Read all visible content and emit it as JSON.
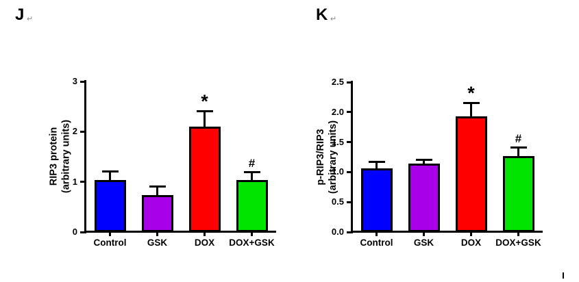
{
  "page": {
    "background": "#ffffff"
  },
  "panels": [
    {
      "label": "J",
      "mark": "↵"
    },
    {
      "label": "K",
      "mark": "↵"
    }
  ],
  "chart_data": [
    {
      "type": "bar",
      "title": "",
      "xlabel": "",
      "ylabel_line1": "RIP3 protein",
      "ylabel_line2": "(arbitrary units)",
      "categories": [
        "Control",
        "GSK",
        "DOX",
        "DOX+GSK"
      ],
      "values": [
        1.03,
        0.73,
        2.1,
        1.03
      ],
      "errors": [
        0.19,
        0.18,
        0.32,
        0.17
      ],
      "bar_colors": [
        "#0000FF",
        "#A800E8",
        "#FF0000",
        "#00E400"
      ],
      "annotations": [
        "",
        "",
        "*",
        "#"
      ],
      "ylim": [
        0,
        3
      ],
      "yticks": [
        0,
        1,
        2,
        3
      ],
      "ytick_labels": [
        "0",
        "1",
        "2",
        "3"
      ],
      "grid": false,
      "legend": "none",
      "error_bar_style": "caps-upward-only",
      "bar_outline_color": "#000000"
    },
    {
      "type": "bar",
      "title": "",
      "xlabel": "",
      "ylabel_line1": "p-RIP3/RIP3",
      "ylabel_line2": "(arbitrary units)",
      "categories": [
        "Control",
        "GSK",
        "DOX",
        "DOX+GSK"
      ],
      "values": [
        1.06,
        1.14,
        1.93,
        1.27
      ],
      "errors": [
        0.12,
        0.07,
        0.23,
        0.15
      ],
      "bar_colors": [
        "#0000FF",
        "#A800E8",
        "#FF0000",
        "#00E400"
      ],
      "annotations": [
        "",
        "",
        "*",
        "#"
      ],
      "ylim": [
        0,
        2.5
      ],
      "yticks": [
        0.0,
        0.5,
        1.0,
        1.5,
        2.0,
        2.5
      ],
      "ytick_labels": [
        "0.0",
        "0.5",
        "1.0",
        "1.5",
        "2.0",
        "2.5"
      ],
      "grid": false,
      "legend": "none",
      "error_bar_style": "caps-upward-only",
      "bar_outline_color": "#000000"
    }
  ]
}
